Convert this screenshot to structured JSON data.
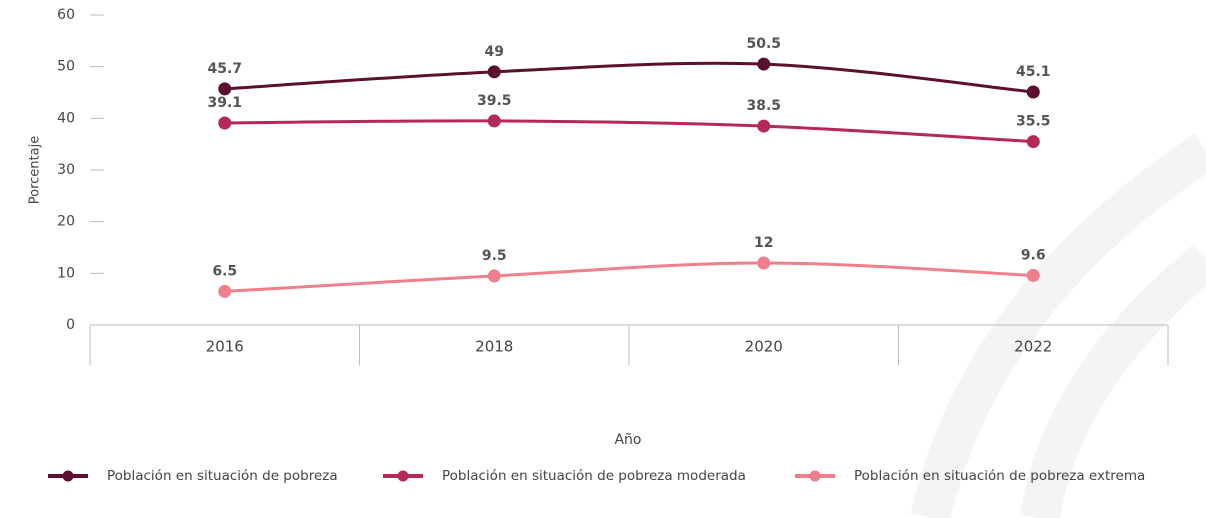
{
  "chart_data": {
    "type": "line",
    "x_label": "Año",
    "y_label": "Porcentaje",
    "categories": [
      "2016",
      "2018",
      "2020",
      "2022"
    ],
    "series": [
      {
        "name": "Población en situación de pobreza",
        "color": "#5c0f2e",
        "values": [
          45.7,
          49,
          50.5,
          45.1
        ]
      },
      {
        "name": "Población en situación de pobreza moderada",
        "color": "#b5285a",
        "values": [
          39.1,
          39.5,
          38.5,
          35.5
        ]
      },
      {
        "name": "Población en situación de pobreza extrema",
        "color": "#ef7f8b",
        "values": [
          6.5,
          9.5,
          12,
          9.6
        ]
      }
    ],
    "ylim": [
      0,
      60
    ],
    "yticks": [
      0,
      10,
      20,
      30,
      40,
      50,
      60
    ],
    "legend": "bottom"
  }
}
